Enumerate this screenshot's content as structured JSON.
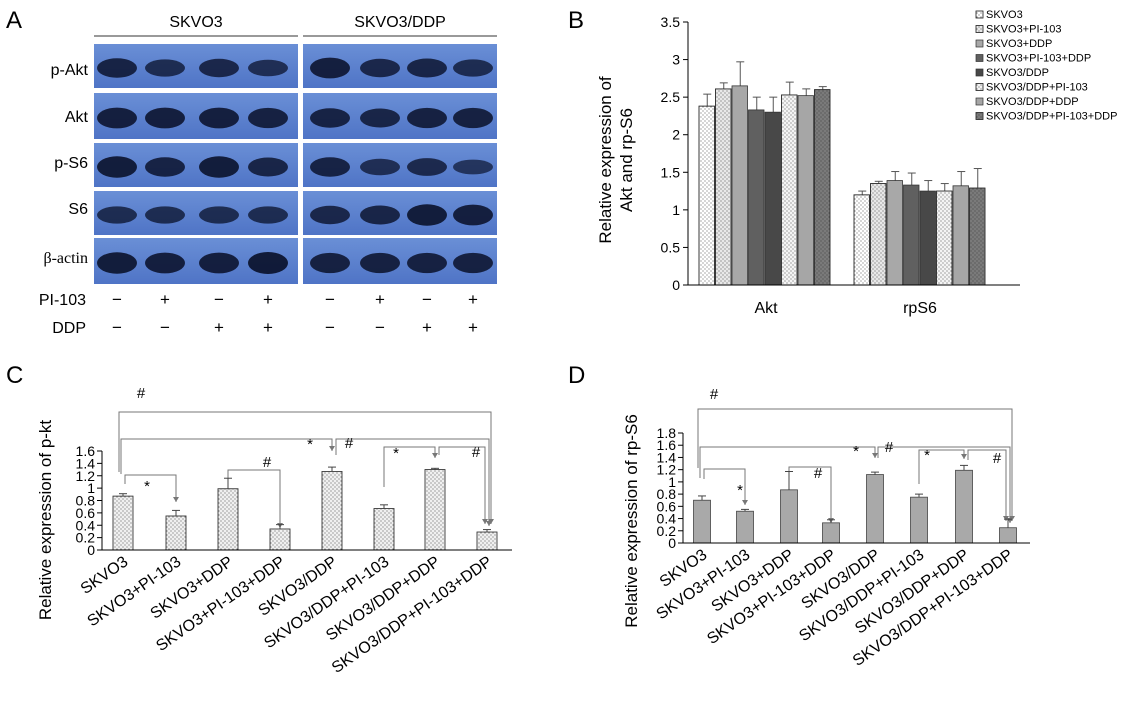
{
  "panel_labels": [
    "A",
    "B",
    "C",
    "D"
  ],
  "blot": {
    "group_labels": [
      "SKVO3",
      "SKVO3/DDP"
    ],
    "rows": [
      "p-Akt",
      "Akt",
      "p-S6",
      "S6",
      "β-actin"
    ],
    "treatments": [
      {
        "label": "PI-103",
        "signs": [
          "−",
          "+",
          "−",
          "+",
          "−",
          "+",
          "−",
          "+"
        ]
      },
      {
        "label": "DDP",
        "signs": [
          "−",
          "−",
          "+",
          "+",
          "−",
          "−",
          "+",
          "+"
        ]
      }
    ]
  },
  "chart_data": [
    {
      "panel": "B",
      "type": "bar",
      "ylabel_lines": [
        "Relative expression of",
        "Akt and rp-S6"
      ],
      "xlabel": "",
      "ylim": [
        0,
        3.5
      ],
      "yticks": [
        "0",
        "0.5",
        "1",
        "1.5",
        "2",
        "2.5",
        "3",
        "3.5"
      ],
      "categories": [
        "Akt",
        "rpS6"
      ],
      "legend_position": "top-right",
      "series": [
        {
          "name": "SKVO3",
          "values": [
            2.38,
            1.2
          ],
          "errors": [
            0.16,
            0.05
          ],
          "color": "#ffffff",
          "pattern": "dots"
        },
        {
          "name": "SKVO3+PI-103",
          "values": [
            2.61,
            1.35
          ],
          "errors": [
            0.08,
            0.03
          ],
          "color": "#e8e8e8",
          "pattern": "dots"
        },
        {
          "name": "SKVO3+DDP",
          "values": [
            2.65,
            1.39
          ],
          "errors": [
            0.32,
            0.12
          ],
          "color": "#a8a8a8",
          "pattern": "none"
        },
        {
          "name": "SKVO3+PI-103+DDP",
          "values": [
            2.33,
            1.33
          ],
          "errors": [
            0.17,
            0.16
          ],
          "color": "#606060",
          "pattern": "none"
        },
        {
          "name": "SKVO3/DDP",
          "values": [
            2.3,
            1.25
          ],
          "errors": [
            0.2,
            0.14
          ],
          "color": "#484848",
          "pattern": "none"
        },
        {
          "name": "SKVO3/DDP+PI-103",
          "values": [
            2.53,
            1.25
          ],
          "errors": [
            0.17,
            0.1
          ],
          "color": "#f4f4f4",
          "pattern": "dots"
        },
        {
          "name": "SKVO3/DDP+DDP",
          "values": [
            2.52,
            1.32
          ],
          "errors": [
            0.09,
            0.19
          ],
          "color": "#a6a6a6",
          "pattern": "none"
        },
        {
          "name": "SKVO3/DDP+PI-103+DDP",
          "values": [
            2.6,
            1.29
          ],
          "errors": [
            0.04,
            0.26
          ],
          "color": "#7a7a7a",
          "pattern": "dots"
        }
      ]
    },
    {
      "panel": "C",
      "type": "bar",
      "ylabel": "Relative expression of p-kt",
      "xlabel": "",
      "ylim": [
        0,
        1.6
      ],
      "yticks": [
        "0",
        "0.2",
        "0.4",
        "0.6",
        "0.8",
        "1",
        "1.2",
        "1.4",
        "1.6"
      ],
      "categories": [
        "SKVO3",
        "SKVO3+PI-103",
        "SKVO3+DDP",
        "SKVO3+PI-103+DDP",
        "SKVO3/DDP",
        "SKVO3/DDP+PI-103",
        "SKVO3/DDP+DDP",
        "SKVO3/DDP+PI-103+DDP"
      ],
      "values": [
        0.87,
        0.55,
        0.99,
        0.34,
        1.27,
        0.67,
        1.3,
        0.29
      ],
      "errors": [
        0.04,
        0.09,
        0.17,
        0.07,
        0.07,
        0.06,
        0.02,
        0.04
      ],
      "bar_color": "#f0f0f0",
      "bar_pattern": "dots",
      "annotations": [
        {
          "from": 0,
          "to": 1,
          "symbol": "*"
        },
        {
          "from": 2,
          "to": 3,
          "symbol": "#"
        },
        {
          "from": 0,
          "to": 4,
          "symbol": "*"
        },
        {
          "from": 4,
          "to": 7,
          "symbol": "#"
        },
        {
          "from": 5,
          "to": 6,
          "symbol": "*"
        },
        {
          "from": 6,
          "to": 7,
          "symbol": "#"
        },
        {
          "from": 0,
          "to": 7,
          "symbol": "#"
        }
      ]
    },
    {
      "panel": "D",
      "type": "bar",
      "ylabel": "Relative expression of rp-S6",
      "xlabel": "",
      "ylim": [
        0,
        1.8
      ],
      "yticks": [
        "0",
        "0.2",
        "0.4",
        "0.6",
        "0.8",
        "1",
        "1.2",
        "1.4",
        "1.6",
        "1.8"
      ],
      "categories": [
        "SKVO3",
        "SKVO3+PI-103",
        "SKVO3+DDP",
        "SKVO3+PI-103+DDP",
        "SKVO3/DDP",
        "SKVO3/DDP+PI-103",
        "SKVO3/DDP+DDP",
        "SKVO3/DDP+PI-103+DDP"
      ],
      "values": [
        0.7,
        0.52,
        0.87,
        0.33,
        1.12,
        0.75,
        1.19,
        0.25
      ],
      "errors": [
        0.07,
        0.03,
        0.3,
        0.05,
        0.04,
        0.05,
        0.08,
        0.14
      ],
      "bar_color": "#a9a9a9",
      "bar_pattern": "none",
      "annotations": [
        {
          "from": 0,
          "to": 1,
          "symbol": "*"
        },
        {
          "from": 2,
          "to": 3,
          "symbol": "#"
        },
        {
          "from": 0,
          "to": 4,
          "symbol": "*"
        },
        {
          "from": 4,
          "to": 7,
          "symbol": "#"
        },
        {
          "from": 5,
          "to": 6,
          "symbol": "*"
        },
        {
          "from": 6,
          "to": 7,
          "symbol": "#"
        },
        {
          "from": 0,
          "to": 7,
          "symbol": "#"
        }
      ]
    }
  ]
}
